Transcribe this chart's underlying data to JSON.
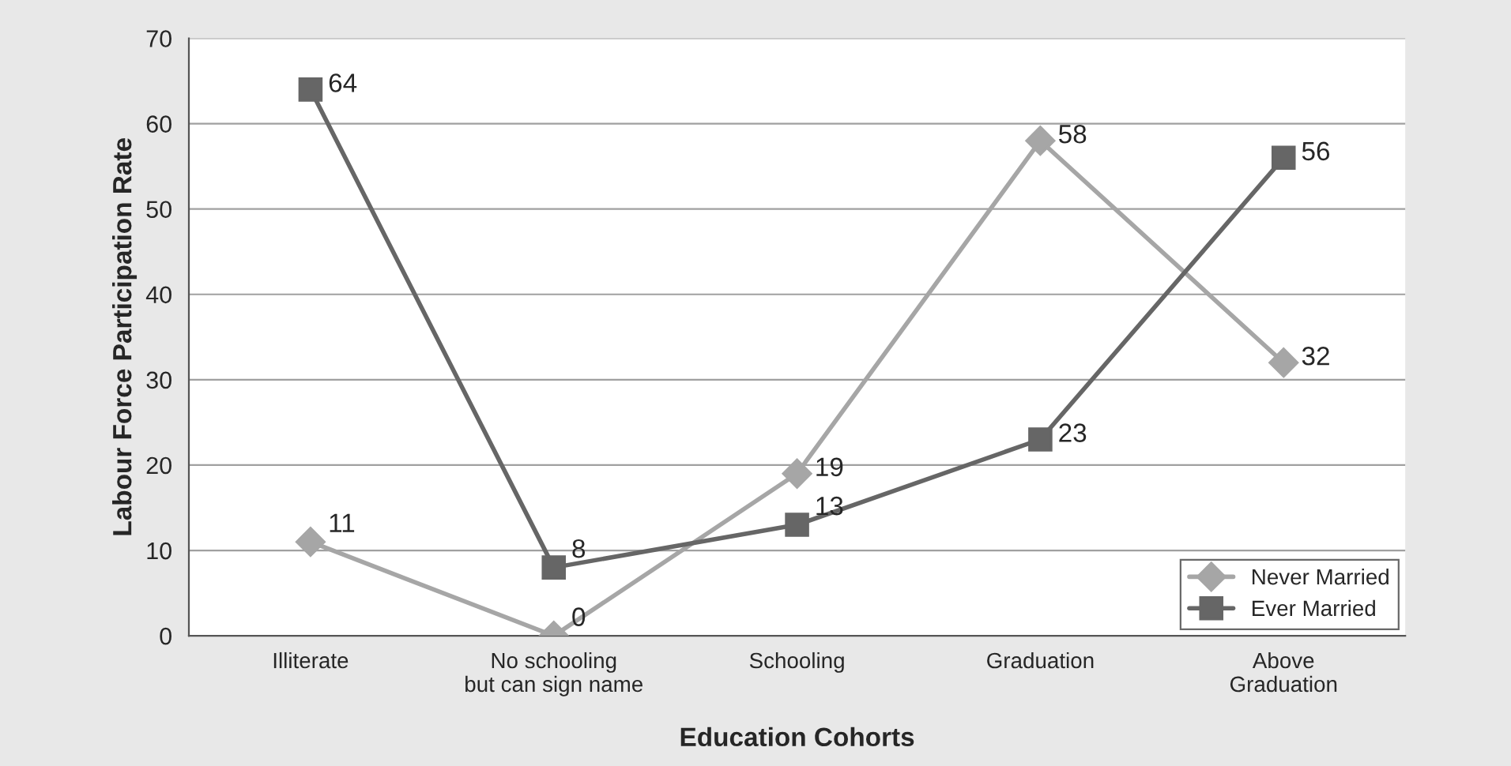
{
  "chart_data": {
    "type": "line",
    "xlabel": "Education Cohorts",
    "ylabel": "Labour Force Participation Rate",
    "categories": [
      "Illiterate",
      "No schooling\nbut can sign name",
      "Schooling",
      "Graduation",
      "Above\nGraduation"
    ],
    "series": [
      {
        "name": "Never Married",
        "color": "#a6a6a6",
        "marker": "diamond",
        "values": [
          11,
          0,
          19,
          58,
          32
        ]
      },
      {
        "name": "Ever Married",
        "color": "#666666",
        "marker": "square",
        "values": [
          64,
          8,
          13,
          23,
          56
        ]
      }
    ],
    "ylim": [
      0,
      70
    ],
    "yticks": [
      0,
      10,
      20,
      30,
      40,
      50,
      60,
      70
    ],
    "grid": "y",
    "legend": "bottom right",
    "data_labels": true
  }
}
